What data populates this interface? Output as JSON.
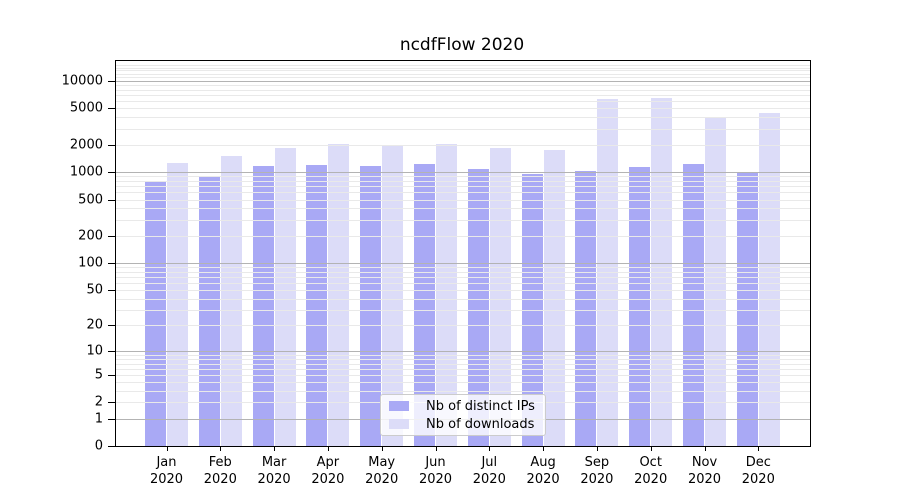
{
  "title": "ncdfFlow 2020",
  "chart_data": {
    "type": "bar",
    "categories": [
      "Jan",
      "Feb",
      "Mar",
      "Apr",
      "May",
      "Jun",
      "Jul",
      "Aug",
      "Sep",
      "Oct",
      "Nov",
      "Dec"
    ],
    "year": "2020",
    "series": [
      {
        "name": "Nb of distinct IPs",
        "color": "#a9a9f5",
        "values": [
          780,
          900,
          1170,
          1200,
          1175,
          1230,
          1075,
          945,
          1030,
          1140,
          1240,
          985
        ]
      },
      {
        "name": "Nb of downloads",
        "color": "#dcdcf8",
        "values": [
          1270,
          1520,
          1850,
          2050,
          1920,
          2020,
          1835,
          1760,
          6320,
          6480,
          4040,
          4470
        ]
      }
    ],
    "yscale": "log10(value+1)",
    "ylim": [
      0,
      16000
    ],
    "yticks": [
      0,
      1,
      2,
      5,
      10,
      20,
      50,
      100,
      200,
      500,
      1000,
      2000,
      5000,
      10000
    ],
    "grid": true,
    "grid_major_color": "#b3b3b3",
    "grid_minor_color": "#e9e9e9",
    "legend_position": "lower center"
  },
  "legend": {
    "items": [
      {
        "label": "Nb of distinct IPs",
        "color": "#a9a9f5"
      },
      {
        "label": "Nb of downloads",
        "color": "#dcdcf8"
      }
    ]
  }
}
